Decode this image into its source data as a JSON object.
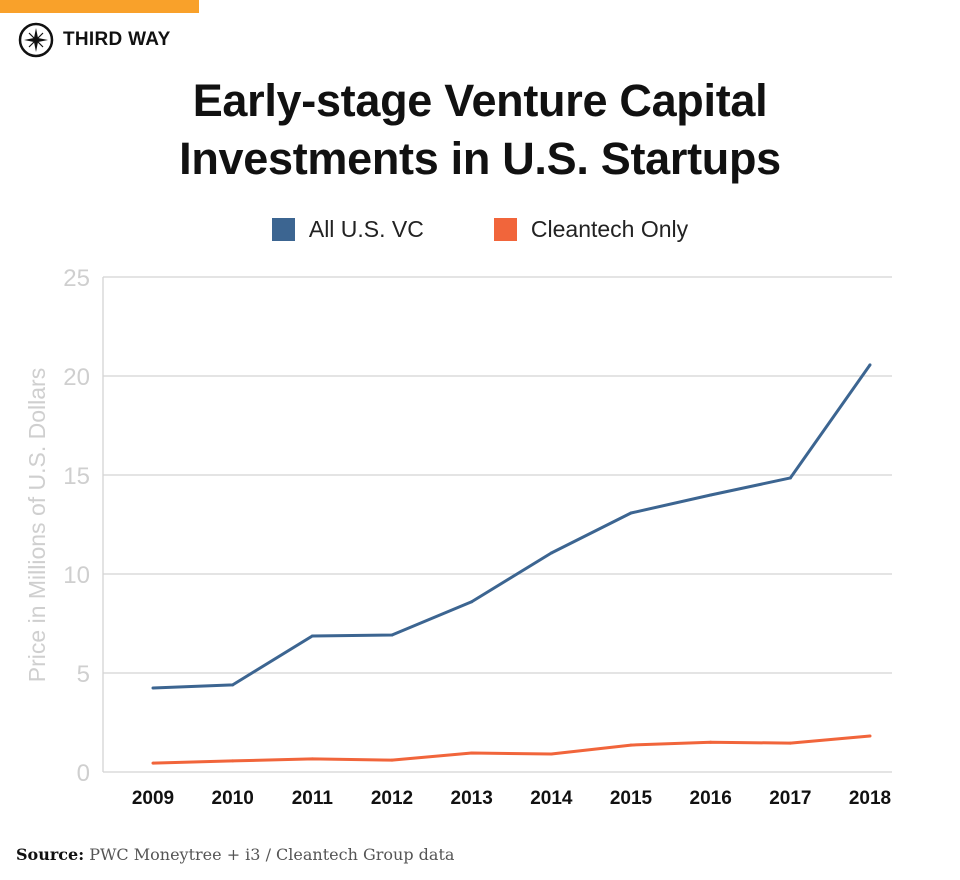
{
  "brand": {
    "name": "THIRD WAY",
    "accent_color": "#f9a12a"
  },
  "chart_data": {
    "type": "line",
    "title": "Early-stage Venture Capital Investments in U.S. Startups",
    "title_lines": [
      "Early-stage Venture Capital",
      "Investments in U.S. Startups"
    ],
    "xlabel": "",
    "ylabel": "Price in Millions of U.S. Dollars",
    "categories": [
      "2009",
      "2010",
      "2011",
      "2012",
      "2013",
      "2014",
      "2015",
      "2016",
      "2017",
      "2018"
    ],
    "ylim": [
      0,
      25
    ],
    "yticks": [
      0,
      5,
      10,
      15,
      20,
      25
    ],
    "grid": true,
    "legend_placement": "top-center",
    "series": [
      {
        "name": "All U.S. VC",
        "color": "#3c6591",
        "values": [
          4.24,
          4.4,
          6.87,
          6.92,
          8.6,
          11.06,
          13.08,
          13.99,
          14.85,
          20.56
        ]
      },
      {
        "name": "Cleantech Only",
        "color": "#f1653b",
        "values": [
          0.45,
          0.56,
          0.66,
          0.6,
          0.96,
          0.91,
          1.36,
          1.5,
          1.46,
          1.82
        ]
      }
    ]
  },
  "source": {
    "label": "Source:",
    "text": "PWC Moneytree + i3 / Cleantech Group data"
  }
}
